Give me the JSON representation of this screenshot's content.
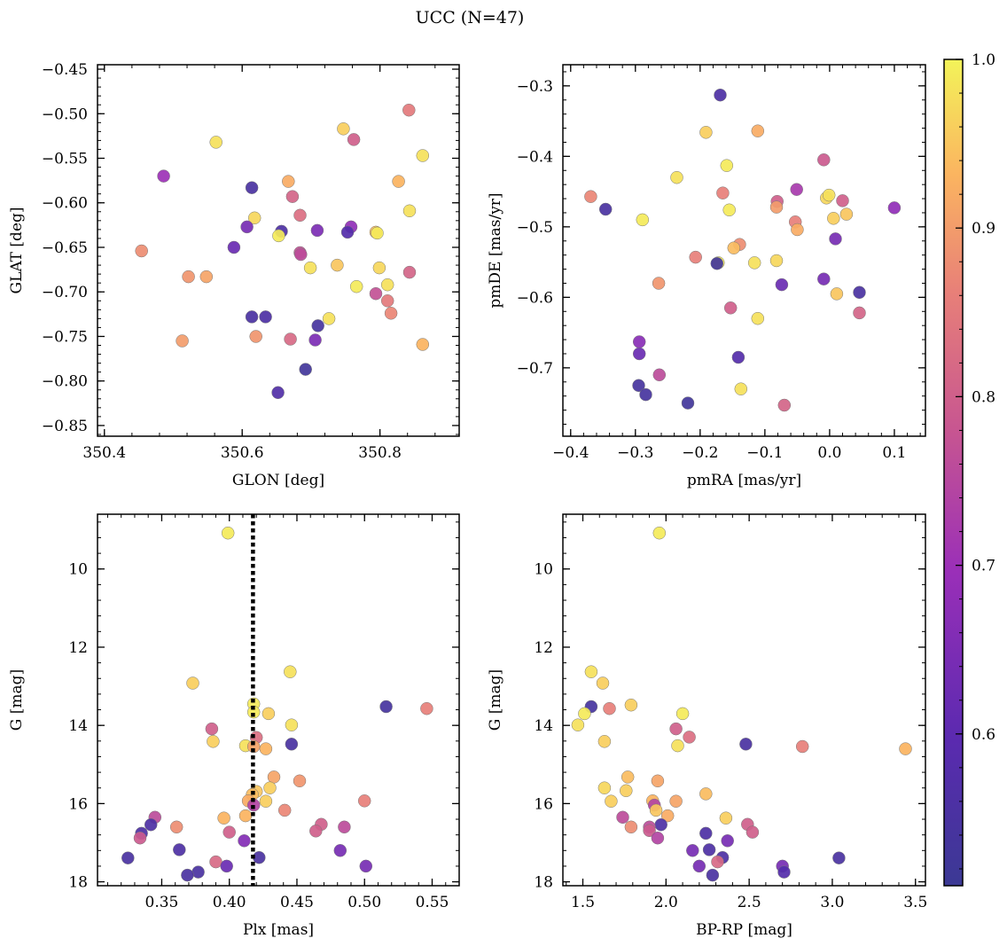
{
  "figure_title": "UCC (N=47)",
  "colorbar": {
    "min": 0.51,
    "max": 1.0,
    "ticks": [
      "0.6",
      "0.7",
      "0.8",
      "0.9",
      "1.0"
    ],
    "tick_values": [
      0.6,
      0.7,
      0.8,
      0.9,
      1.0
    ],
    "colormap": "plasma"
  },
  "chart_data": [
    {
      "type": "scatter",
      "id": "glon-glat",
      "xlabel": "GLON [deg]",
      "ylabel": "GLAT [deg]",
      "xlim": [
        350.39,
        350.915
      ],
      "ylim": [
        -0.862,
        -0.445
      ],
      "xticks": [
        350.4,
        350.6,
        350.8
      ],
      "xtick_labels": [
        "350.4",
        "350.6",
        "350.8"
      ],
      "yticks": [
        -0.85,
        -0.8,
        -0.75,
        -0.7,
        -0.65,
        -0.6,
        -0.55,
        -0.5,
        -0.45
      ],
      "ytick_labels": [
        "−0.85",
        "−0.80",
        "−0.75",
        "−0.70",
        "−0.65",
        "−0.60",
        "−0.55",
        "−0.50",
        "−0.45"
      ],
      "points": [
        {
          "x": 350.842,
          "y": -0.496,
          "c": 0.85
        },
        {
          "x": 350.747,
          "y": -0.517,
          "c": 0.96
        },
        {
          "x": 350.762,
          "y": -0.529,
          "c": 0.8
        },
        {
          "x": 350.562,
          "y": -0.532,
          "c": 0.98
        },
        {
          "x": 350.862,
          "y": -0.547,
          "c": 0.98
        },
        {
          "x": 350.486,
          "y": -0.57,
          "c": 0.7
        },
        {
          "x": 350.827,
          "y": -0.576,
          "c": 0.93
        },
        {
          "x": 350.667,
          "y": -0.576,
          "c": 0.92
        },
        {
          "x": 350.614,
          "y": -0.583,
          "c": 0.55
        },
        {
          "x": 350.673,
          "y": -0.593,
          "c": 0.81
        },
        {
          "x": 350.843,
          "y": -0.609,
          "c": 0.98
        },
        {
          "x": 350.684,
          "y": -0.614,
          "c": 0.83
        },
        {
          "x": 350.618,
          "y": -0.617,
          "c": 0.97
        },
        {
          "x": 350.607,
          "y": -0.627,
          "c": 0.64
        },
        {
          "x": 350.758,
          "y": -0.627,
          "c": 0.68
        },
        {
          "x": 350.709,
          "y": -0.631,
          "c": 0.65
        },
        {
          "x": 350.657,
          "y": -0.632,
          "c": 0.56
        },
        {
          "x": 350.753,
          "y": -0.633,
          "c": 0.58
        },
        {
          "x": 350.794,
          "y": -0.633,
          "c": 0.94
        },
        {
          "x": 350.796,
          "y": -0.634,
          "c": 0.99
        },
        {
          "x": 350.653,
          "y": -0.637,
          "c": 0.99
        },
        {
          "x": 350.588,
          "y": -0.65,
          "c": 0.62
        },
        {
          "x": 350.454,
          "y": -0.654,
          "c": 0.88
        },
        {
          "x": 350.684,
          "y": -0.656,
          "c": 0.77
        },
        {
          "x": 350.685,
          "y": -0.658,
          "c": 0.76
        },
        {
          "x": 350.738,
          "y": -0.67,
          "c": 0.95
        },
        {
          "x": 350.699,
          "y": -0.673,
          "c": 0.98
        },
        {
          "x": 350.799,
          "y": -0.673,
          "c": 0.97
        },
        {
          "x": 350.843,
          "y": -0.678,
          "c": 0.81
        },
        {
          "x": 350.522,
          "y": -0.683,
          "c": 0.89
        },
        {
          "x": 350.548,
          "y": -0.683,
          "c": 0.91
        },
        {
          "x": 350.811,
          "y": -0.692,
          "c": 0.98
        },
        {
          "x": 350.766,
          "y": -0.694,
          "c": 0.99
        },
        {
          "x": 350.794,
          "y": -0.702,
          "c": 0.77
        },
        {
          "x": 350.811,
          "y": -0.71,
          "c": 0.85
        },
        {
          "x": 350.816,
          "y": -0.724,
          "c": 0.87
        },
        {
          "x": 350.614,
          "y": -0.728,
          "c": 0.55
        },
        {
          "x": 350.634,
          "y": -0.728,
          "c": 0.56
        },
        {
          "x": 350.726,
          "y": -0.73,
          "c": 0.98
        },
        {
          "x": 350.71,
          "y": -0.738,
          "c": 0.54
        },
        {
          "x": 350.62,
          "y": -0.75,
          "c": 0.89
        },
        {
          "x": 350.67,
          "y": -0.753,
          "c": 0.82
        },
        {
          "x": 350.706,
          "y": -0.754,
          "c": 0.65
        },
        {
          "x": 350.513,
          "y": -0.755,
          "c": 0.9
        },
        {
          "x": 350.862,
          "y": -0.759,
          "c": 0.93
        },
        {
          "x": 350.692,
          "y": -0.787,
          "c": 0.53
        },
        {
          "x": 350.652,
          "y": -0.813,
          "c": 0.57
        }
      ]
    },
    {
      "type": "scatter",
      "id": "pmra-pmde",
      "xlabel": "pmRA [mas/yr]",
      "ylabel": "pmDE [mas/yr]",
      "xlim": [
        -0.412,
        0.148
      ],
      "ylim": [
        -0.797,
        -0.27
      ],
      "xticks": [
        -0.4,
        -0.3,
        -0.2,
        -0.1,
        0.0,
        0.1
      ],
      "xtick_labels": [
        "−0.4",
        "−0.3",
        "−0.2",
        "−0.1",
        "0.0",
        "0.1"
      ],
      "yticks": [
        -0.7,
        -0.6,
        -0.5,
        -0.4,
        -0.3
      ],
      "ytick_labels": [
        "−0.7",
        "−0.6",
        "−0.5",
        "−0.4",
        "−0.3"
      ],
      "points": [
        {
          "x": -0.169,
          "y": -0.313,
          "c": 0.56
        },
        {
          "x": -0.191,
          "y": -0.366,
          "c": 0.96
        },
        {
          "x": -0.111,
          "y": -0.364,
          "c": 0.92
        },
        {
          "x": -0.009,
          "y": -0.405,
          "c": 0.79
        },
        {
          "x": -0.159,
          "y": -0.413,
          "c": 0.99
        },
        {
          "x": -0.236,
          "y": -0.43,
          "c": 0.98
        },
        {
          "x": -0.051,
          "y": -0.447,
          "c": 0.72
        },
        {
          "x": -0.165,
          "y": -0.452,
          "c": 0.86
        },
        {
          "x": -0.369,
          "y": -0.457,
          "c": 0.87
        },
        {
          "x": -0.005,
          "y": -0.459,
          "c": 0.97
        },
        {
          "x": -0.001,
          "y": -0.455,
          "c": 0.98
        },
        {
          "x": -0.081,
          "y": -0.464,
          "c": 0.8
        },
        {
          "x": 0.02,
          "y": -0.463,
          "c": 0.8
        },
        {
          "x": -0.082,
          "y": -0.472,
          "c": 0.9
        },
        {
          "x": -0.346,
          "y": -0.475,
          "c": 0.55
        },
        {
          "x": -0.155,
          "y": -0.476,
          "c": 0.99
        },
        {
          "x": 0.1,
          "y": -0.473,
          "c": 0.68
        },
        {
          "x": 0.026,
          "y": -0.482,
          "c": 0.95
        },
        {
          "x": -0.289,
          "y": -0.49,
          "c": 0.99
        },
        {
          "x": 0.006,
          "y": -0.488,
          "c": 0.96
        },
        {
          "x": -0.053,
          "y": -0.493,
          "c": 0.86
        },
        {
          "x": -0.05,
          "y": -0.504,
          "c": 0.92
        },
        {
          "x": 0.009,
          "y": -0.517,
          "c": 0.64
        },
        {
          "x": -0.139,
          "y": -0.525,
          "c": 0.88
        },
        {
          "x": -0.148,
          "y": -0.53,
          "c": 0.94
        },
        {
          "x": -0.207,
          "y": -0.543,
          "c": 0.86
        },
        {
          "x": -0.082,
          "y": -0.548,
          "c": 0.97
        },
        {
          "x": -0.116,
          "y": -0.551,
          "c": 0.98
        },
        {
          "x": -0.172,
          "y": -0.551,
          "c": 0.99
        },
        {
          "x": -0.174,
          "y": -0.552,
          "c": 0.53
        },
        {
          "x": -0.009,
          "y": -0.574,
          "c": 0.64
        },
        {
          "x": -0.264,
          "y": -0.58,
          "c": 0.89
        },
        {
          "x": -0.074,
          "y": -0.582,
          "c": 0.62
        },
        {
          "x": 0.046,
          "y": -0.593,
          "c": 0.55
        },
        {
          "x": 0.011,
          "y": -0.595,
          "c": 0.95
        },
        {
          "x": -0.111,
          "y": -0.63,
          "c": 0.98
        },
        {
          "x": -0.153,
          "y": -0.615,
          "c": 0.8
        },
        {
          "x": 0.046,
          "y": -0.622,
          "c": 0.81
        },
        {
          "x": -0.294,
          "y": -0.663,
          "c": 0.67
        },
        {
          "x": -0.294,
          "y": -0.68,
          "c": 0.62
        },
        {
          "x": -0.141,
          "y": -0.685,
          "c": 0.58
        },
        {
          "x": -0.263,
          "y": -0.71,
          "c": 0.76
        },
        {
          "x": -0.295,
          "y": -0.725,
          "c": 0.54
        },
        {
          "x": -0.137,
          "y": -0.73,
          "c": 0.98
        },
        {
          "x": -0.284,
          "y": -0.738,
          "c": 0.54
        },
        {
          "x": -0.219,
          "y": -0.75,
          "c": 0.53
        },
        {
          "x": -0.07,
          "y": -0.753,
          "c": 0.81
        }
      ]
    },
    {
      "type": "scatter",
      "id": "plx-g",
      "xlabel": "Plx [mas]",
      "ylabel": "G [mag]",
      "xlim": [
        0.3025,
        0.57
      ],
      "ylim": [
        18.1,
        8.6
      ],
      "y_inverted": true,
      "xticks": [
        0.35,
        0.4,
        0.45,
        0.5,
        0.55
      ],
      "xtick_labels": [
        "0.35",
        "0.40",
        "0.45",
        "0.50",
        "0.55"
      ],
      "yticks": [
        10,
        12,
        14,
        16,
        18
      ],
      "ytick_labels": [
        "10",
        "12",
        "14",
        "16",
        "18"
      ],
      "vline": {
        "x": 0.4175,
        "style": "dotted",
        "color": "#000000"
      },
      "points": [
        {
          "x": 0.399,
          "y": 9.08,
          "c": 0.99
        },
        {
          "x": 0.445,
          "y": 12.63,
          "c": 0.98
        },
        {
          "x": 0.373,
          "y": 12.92,
          "c": 0.96
        },
        {
          "x": 0.418,
          "y": 13.45,
          "c": 0.99
        },
        {
          "x": 0.516,
          "y": 13.52,
          "c": 0.54
        },
        {
          "x": 0.546,
          "y": 13.57,
          "c": 0.86
        },
        {
          "x": 0.418,
          "y": 13.66,
          "c": 0.99
        },
        {
          "x": 0.429,
          "y": 13.7,
          "c": 0.96
        },
        {
          "x": 0.446,
          "y": 13.99,
          "c": 0.98
        },
        {
          "x": 0.387,
          "y": 14.09,
          "c": 0.8
        },
        {
          "x": 0.42,
          "y": 14.31,
          "c": 0.83
        },
        {
          "x": 0.388,
          "y": 14.41,
          "c": 0.96
        },
        {
          "x": 0.446,
          "y": 14.48,
          "c": 0.55
        },
        {
          "x": 0.412,
          "y": 14.52,
          "c": 0.98
        },
        {
          "x": 0.418,
          "y": 14.54,
          "c": 0.91
        },
        {
          "x": 0.427,
          "y": 14.6,
          "c": 0.93
        },
        {
          "x": 0.433,
          "y": 15.32,
          "c": 0.91
        },
        {
          "x": 0.452,
          "y": 15.42,
          "c": 0.89
        },
        {
          "x": 0.43,
          "y": 15.6,
          "c": 0.96
        },
        {
          "x": 0.42,
          "y": 15.69,
          "c": 0.95
        },
        {
          "x": 0.417,
          "y": 15.77,
          "c": 0.94
        },
        {
          "x": 0.414,
          "y": 15.93,
          "c": 0.92
        },
        {
          "x": 0.427,
          "y": 15.94,
          "c": 0.96
        },
        {
          "x": 0.5,
          "y": 15.93,
          "c": 0.86
        },
        {
          "x": 0.418,
          "y": 16.04,
          "c": 0.74
        },
        {
          "x": 0.441,
          "y": 16.17,
          "c": 0.87
        },
        {
          "x": 0.412,
          "y": 16.31,
          "c": 0.93
        },
        {
          "x": 0.345,
          "y": 16.35,
          "c": 0.76
        },
        {
          "x": 0.396,
          "y": 16.37,
          "c": 0.93
        },
        {
          "x": 0.468,
          "y": 16.53,
          "c": 0.8
        },
        {
          "x": 0.342,
          "y": 16.54,
          "c": 0.56
        },
        {
          "x": 0.361,
          "y": 16.6,
          "c": 0.88
        },
        {
          "x": 0.485,
          "y": 16.6,
          "c": 0.76
        },
        {
          "x": 0.464,
          "y": 16.7,
          "c": 0.8
        },
        {
          "x": 0.4,
          "y": 16.73,
          "c": 0.8
        },
        {
          "x": 0.335,
          "y": 16.76,
          "c": 0.56
        },
        {
          "x": 0.334,
          "y": 16.88,
          "c": 0.79
        },
        {
          "x": 0.411,
          "y": 16.95,
          "c": 0.66
        },
        {
          "x": 0.363,
          "y": 17.18,
          "c": 0.56
        },
        {
          "x": 0.482,
          "y": 17.2,
          "c": 0.64
        },
        {
          "x": 0.325,
          "y": 17.39,
          "c": 0.55
        },
        {
          "x": 0.422,
          "y": 17.38,
          "c": 0.55
        },
        {
          "x": 0.39,
          "y": 17.49,
          "c": 0.82
        },
        {
          "x": 0.398,
          "y": 17.6,
          "c": 0.62
        },
        {
          "x": 0.501,
          "y": 17.6,
          "c": 0.64
        },
        {
          "x": 0.377,
          "y": 17.75,
          "c": 0.55
        },
        {
          "x": 0.369,
          "y": 17.83,
          "c": 0.55
        }
      ]
    },
    {
      "type": "scatter",
      "id": "bprp-g",
      "xlabel": "BP-RP [mag]",
      "ylabel": "G [mag]",
      "xlim": [
        1.38,
        3.56
      ],
      "ylim": [
        18.1,
        8.6
      ],
      "y_inverted": true,
      "xticks": [
        1.5,
        2.0,
        2.5,
        3.0,
        3.5
      ],
      "xtick_labels": [
        "1.5",
        "2.0",
        "2.5",
        "3.0",
        "3.5"
      ],
      "yticks": [
        10,
        12,
        14,
        16,
        18
      ],
      "ytick_labels": [
        "10",
        "12",
        "14",
        "16",
        "18"
      ],
      "points": [
        {
          "x": 1.96,
          "y": 9.08,
          "c": 0.99
        },
        {
          "x": 1.55,
          "y": 12.63,
          "c": 0.98
        },
        {
          "x": 1.62,
          "y": 12.92,
          "c": 0.96
        },
        {
          "x": 1.79,
          "y": 13.48,
          "c": 0.96
        },
        {
          "x": 1.55,
          "y": 13.52,
          "c": 0.54
        },
        {
          "x": 1.66,
          "y": 13.57,
          "c": 0.86
        },
        {
          "x": 1.51,
          "y": 13.7,
          "c": 0.99
        },
        {
          "x": 2.1,
          "y": 13.7,
          "c": 0.99
        },
        {
          "x": 1.47,
          "y": 13.99,
          "c": 0.98
        },
        {
          "x": 2.06,
          "y": 14.09,
          "c": 0.8
        },
        {
          "x": 2.14,
          "y": 14.3,
          "c": 0.83
        },
        {
          "x": 1.63,
          "y": 14.41,
          "c": 0.96
        },
        {
          "x": 2.48,
          "y": 14.48,
          "c": 0.55
        },
        {
          "x": 2.07,
          "y": 14.52,
          "c": 0.98
        },
        {
          "x": 2.82,
          "y": 14.54,
          "c": 0.86
        },
        {
          "x": 3.44,
          "y": 14.6,
          "c": 0.93
        },
        {
          "x": 1.77,
          "y": 15.32,
          "c": 0.94
        },
        {
          "x": 1.95,
          "y": 15.42,
          "c": 0.91
        },
        {
          "x": 1.63,
          "y": 15.6,
          "c": 0.97
        },
        {
          "x": 1.76,
          "y": 15.67,
          "c": 0.96
        },
        {
          "x": 2.24,
          "y": 15.75,
          "c": 0.94
        },
        {
          "x": 1.67,
          "y": 15.94,
          "c": 0.96
        },
        {
          "x": 1.92,
          "y": 15.93,
          "c": 0.93
        },
        {
          "x": 2.06,
          "y": 15.94,
          "c": 0.91
        },
        {
          "x": 1.93,
          "y": 16.04,
          "c": 0.74
        },
        {
          "x": 1.94,
          "y": 16.17,
          "c": 0.95
        },
        {
          "x": 2.01,
          "y": 16.31,
          "c": 0.92
        },
        {
          "x": 1.74,
          "y": 16.35,
          "c": 0.76
        },
        {
          "x": 2.36,
          "y": 16.37,
          "c": 0.96
        },
        {
          "x": 2.49,
          "y": 16.53,
          "c": 0.8
        },
        {
          "x": 1.97,
          "y": 16.54,
          "c": 0.56
        },
        {
          "x": 1.9,
          "y": 16.6,
          "c": 0.76
        },
        {
          "x": 1.79,
          "y": 16.6,
          "c": 0.88
        },
        {
          "x": 1.9,
          "y": 16.69,
          "c": 0.79
        },
        {
          "x": 2.52,
          "y": 16.73,
          "c": 0.8
        },
        {
          "x": 2.24,
          "y": 16.76,
          "c": 0.56
        },
        {
          "x": 1.95,
          "y": 16.88,
          "c": 0.74
        },
        {
          "x": 2.37,
          "y": 16.95,
          "c": 0.64
        },
        {
          "x": 2.16,
          "y": 17.2,
          "c": 0.64
        },
        {
          "x": 2.26,
          "y": 17.18,
          "c": 0.56
        },
        {
          "x": 2.34,
          "y": 17.38,
          "c": 0.56
        },
        {
          "x": 3.04,
          "y": 17.39,
          "c": 0.55
        },
        {
          "x": 2.31,
          "y": 17.49,
          "c": 0.82
        },
        {
          "x": 2.2,
          "y": 17.6,
          "c": 0.64
        },
        {
          "x": 2.7,
          "y": 17.6,
          "c": 0.64
        },
        {
          "x": 2.71,
          "y": 17.75,
          "c": 0.58
        },
        {
          "x": 2.28,
          "y": 17.83,
          "c": 0.55
        }
      ]
    }
  ]
}
